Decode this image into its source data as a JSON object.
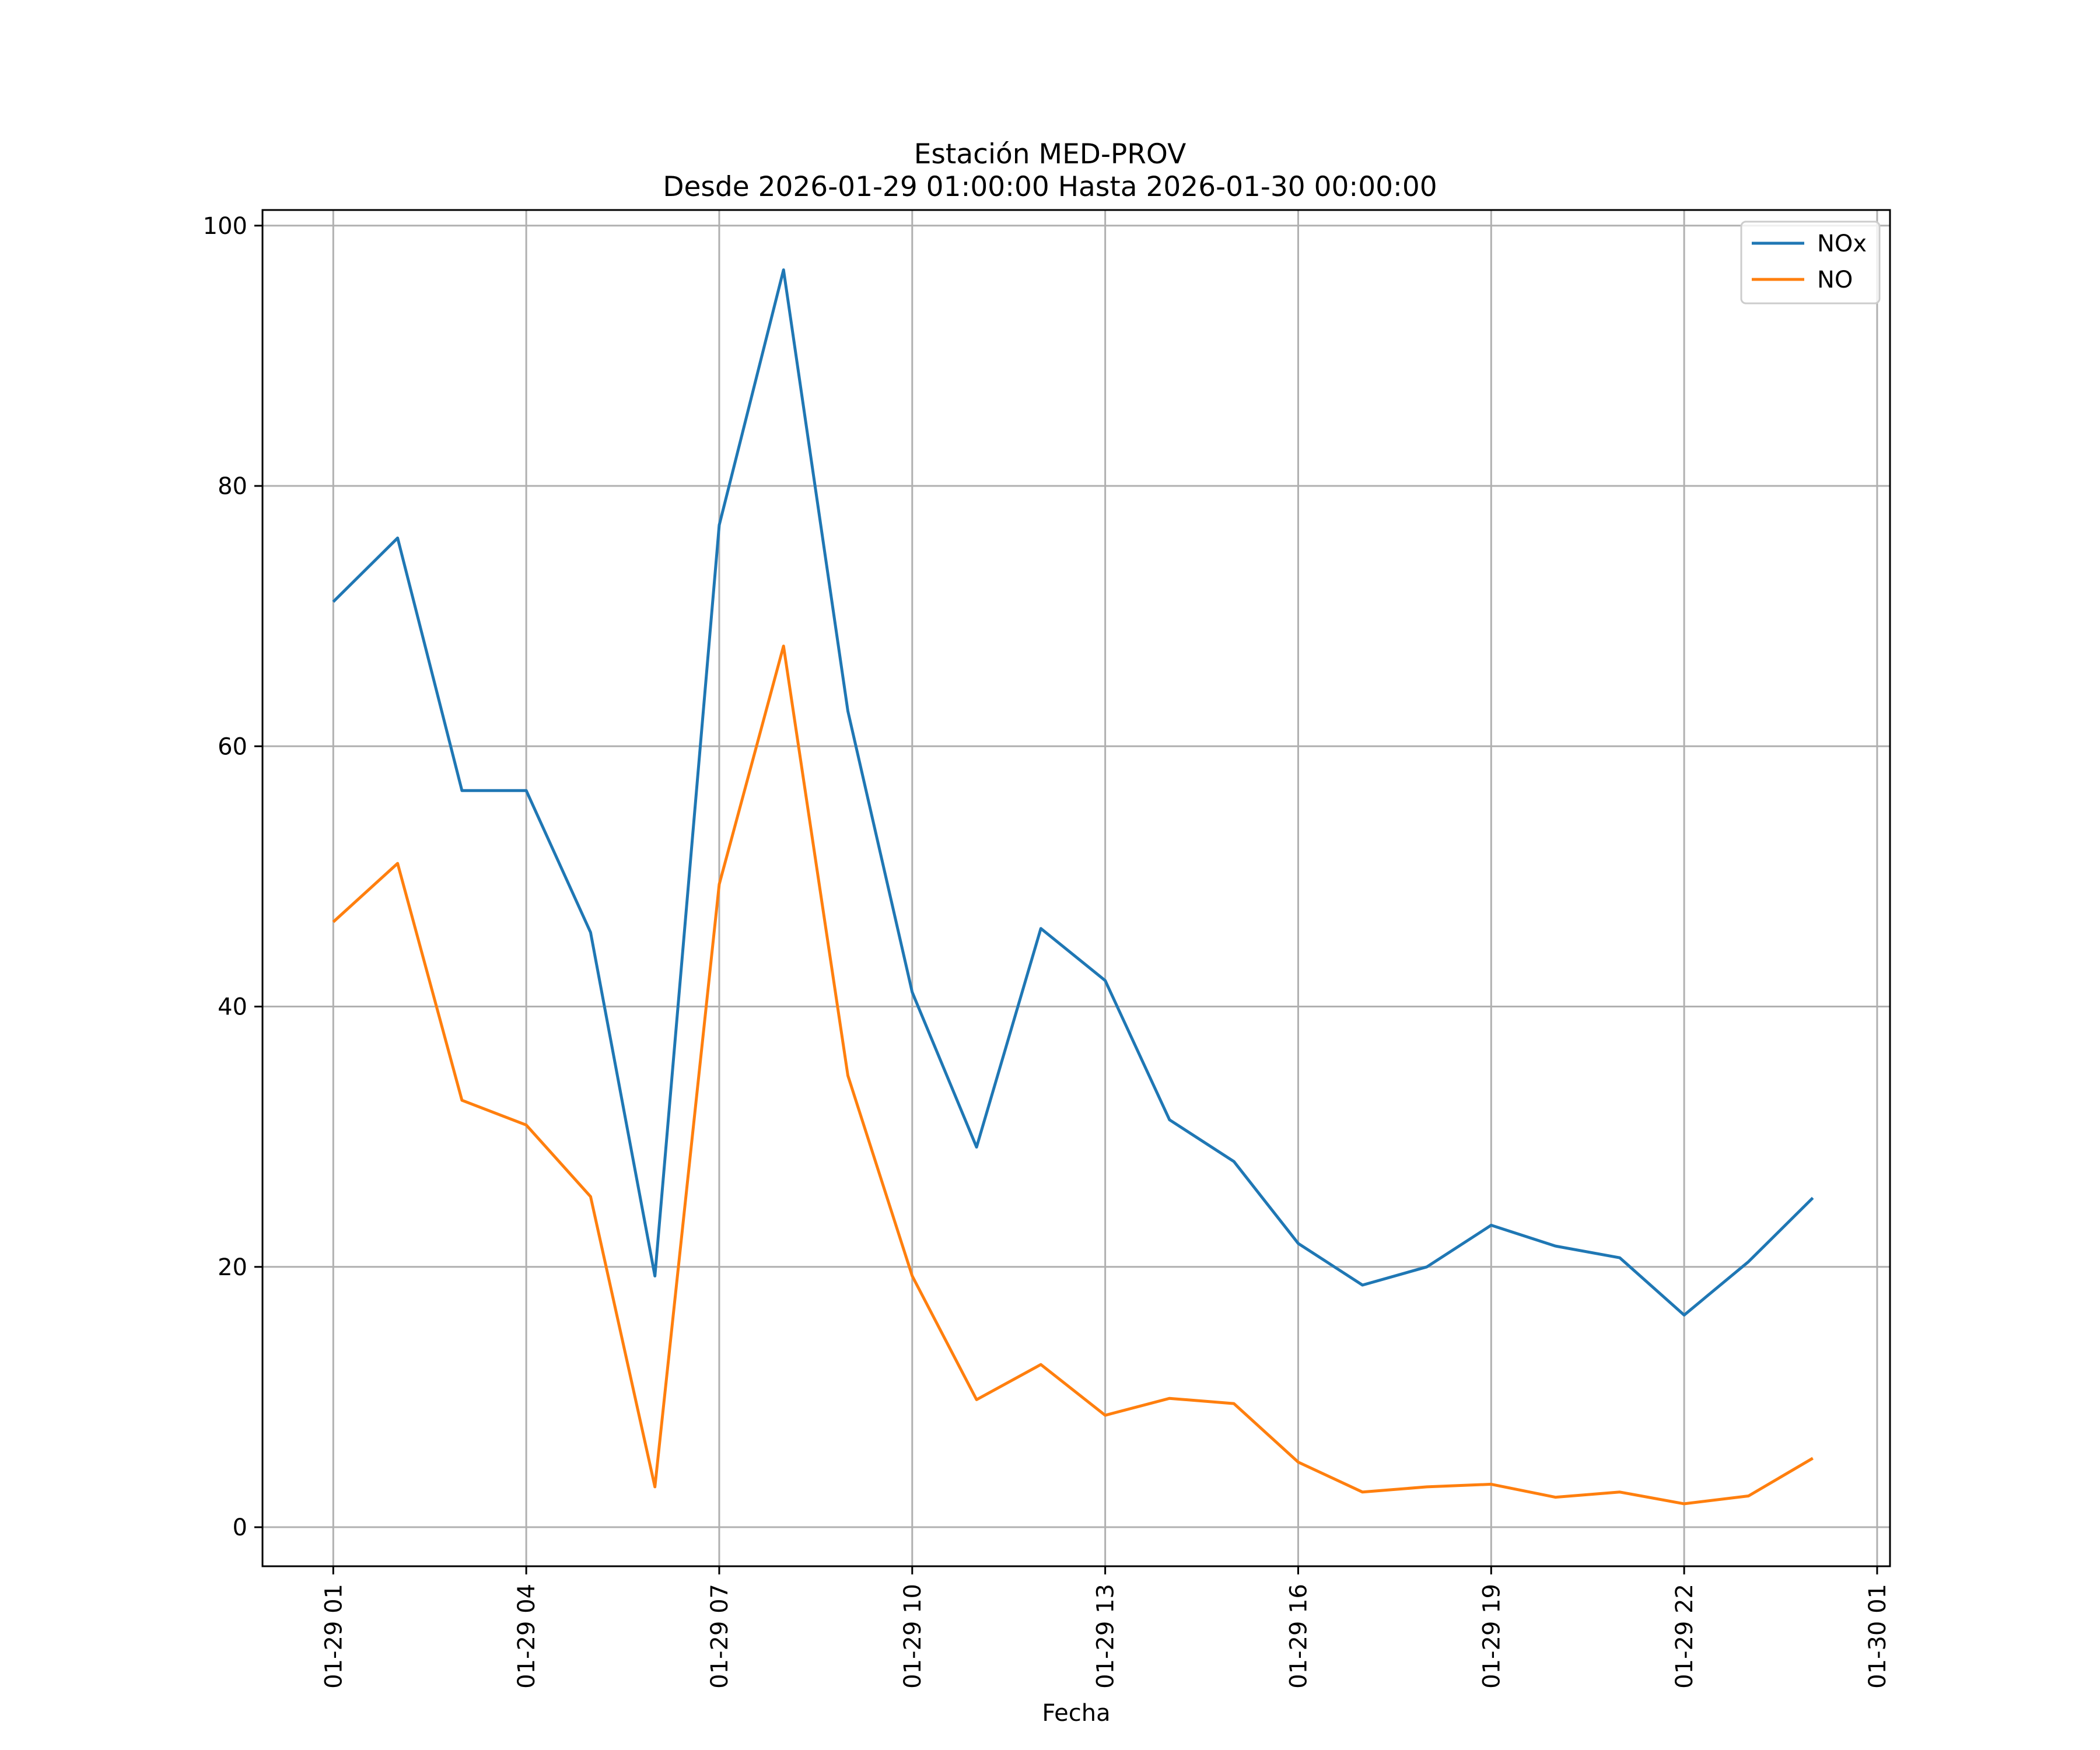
{
  "chart_data": {
    "type": "line",
    "title_line1": "Estación MED-PROV",
    "title_line2": "Desde 2026-01-29 01:00:00 Hasta 2026-01-30 00:00:00",
    "xlabel": "Fecha",
    "ylabel": "",
    "ylim": [
      -3,
      101.2
    ],
    "xlim": [
      -1.1,
      24.2
    ],
    "grid": true,
    "legend_position": "top-right",
    "yticks": [
      0,
      20,
      40,
      60,
      80,
      100
    ],
    "xticks": [
      {
        "pos": 0,
        "label": "01-29 01"
      },
      {
        "pos": 3,
        "label": "01-29 04"
      },
      {
        "pos": 6,
        "label": "01-29 07"
      },
      {
        "pos": 9,
        "label": "01-29 10"
      },
      {
        "pos": 12,
        "label": "01-29 13"
      },
      {
        "pos": 15,
        "label": "01-29 16"
      },
      {
        "pos": 18,
        "label": "01-29 19"
      },
      {
        "pos": 21,
        "label": "01-29 22"
      },
      {
        "pos": 24,
        "label": "01-30 01"
      }
    ],
    "x": [
      "01-29 01",
      "01-29 02",
      "01-29 03",
      "01-29 04",
      "01-29 05",
      "01-29 06",
      "01-29 07",
      "01-29 08",
      "01-29 09",
      "01-29 10",
      "01-29 11",
      "01-29 12",
      "01-29 13",
      "01-29 14",
      "01-29 15",
      "01-29 16",
      "01-29 17",
      "01-29 18",
      "01-29 19",
      "01-29 20",
      "01-29 21",
      "01-29 22",
      "01-29 23",
      "01-30 00"
    ],
    "series": [
      {
        "name": "NOx",
        "color": "#1f77b4",
        "values": [
          71.1,
          76.0,
          56.6,
          56.6,
          45.7,
          19.3,
          77.0,
          96.6,
          62.7,
          41.1,
          29.2,
          46.0,
          42.0,
          31.3,
          28.1,
          21.8,
          18.6,
          20.0,
          23.2,
          21.6,
          20.7,
          16.3,
          20.4,
          25.3
        ]
      },
      {
        "name": "NO",
        "color": "#ff7f0e",
        "values": [
          46.5,
          51.0,
          32.8,
          30.9,
          25.4,
          3.1,
          49.4,
          67.7,
          34.7,
          19.3,
          9.8,
          12.5,
          8.6,
          9.9,
          9.5,
          5.0,
          2.7,
          3.1,
          3.3,
          2.3,
          2.7,
          1.8,
          2.4,
          5.3
        ]
      }
    ]
  }
}
